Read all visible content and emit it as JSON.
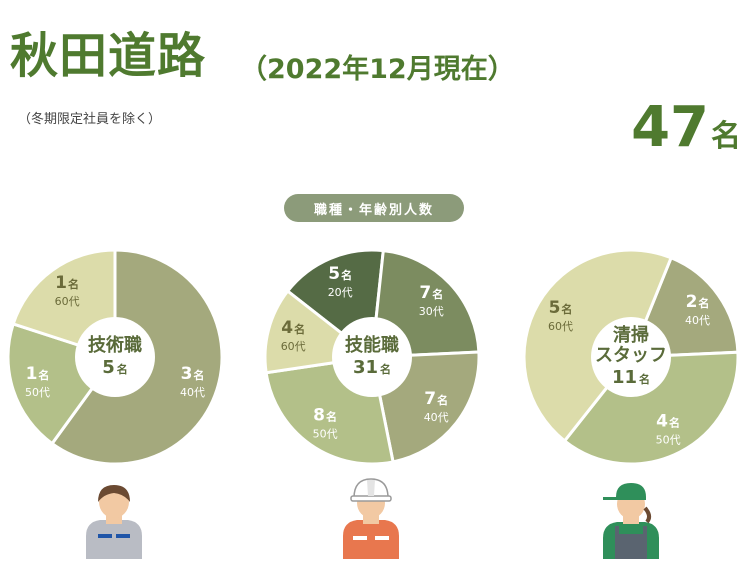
{
  "header": {
    "title": "秋田道路",
    "as_of": "（2022年12月現在）",
    "note": "（冬期限定社員を除く）",
    "total_number": "47",
    "total_unit": "名"
  },
  "section_label": "職種・年齢別人数",
  "chart_data": [
    {
      "type": "pie",
      "center_label": [
        "技術職"
      ],
      "center_count": "5",
      "unit": "名",
      "slices": [
        {
          "value": 3,
          "age": "40代",
          "color": "#a4a97d"
        },
        {
          "value": 1,
          "age": "50代",
          "color": "#b3c089"
        },
        {
          "value": 1,
          "age": "60代",
          "color": "#dcdcaa"
        }
      ]
    },
    {
      "type": "pie",
      "center_label": [
        "技能職"
      ],
      "center_count": "31",
      "unit": "名",
      "slices": [
        {
          "value": 5,
          "age": "20代",
          "color": "#556b45"
        },
        {
          "value": 7,
          "age": "30代",
          "color": "#7c8c60"
        },
        {
          "value": 7,
          "age": "40代",
          "color": "#a4a97d"
        },
        {
          "value": 8,
          "age": "50代",
          "color": "#b3c089"
        },
        {
          "value": 4,
          "age": "60代",
          "color": "#dcdcaa"
        }
      ]
    },
    {
      "type": "pie",
      "center_label": [
        "清掃",
        "スタッフ"
      ],
      "center_count": "11",
      "unit": "名",
      "slices": [
        {
          "value": 2,
          "age": "40代",
          "color": "#a4a97d"
        },
        {
          "value": 4,
          "age": "50代",
          "color": "#b3c089"
        },
        {
          "value": 5,
          "age": "60代",
          "color": "#dcdcaa"
        }
      ]
    }
  ],
  "avatars": [
    {
      "icon": "office-worker-icon"
    },
    {
      "icon": "hard-hat-worker-icon"
    },
    {
      "icon": "cleaning-staff-icon"
    }
  ],
  "colors": {
    "title": "#4f7a2f",
    "center_text": "#5a6b3a",
    "pill": "#8c9b7a"
  }
}
